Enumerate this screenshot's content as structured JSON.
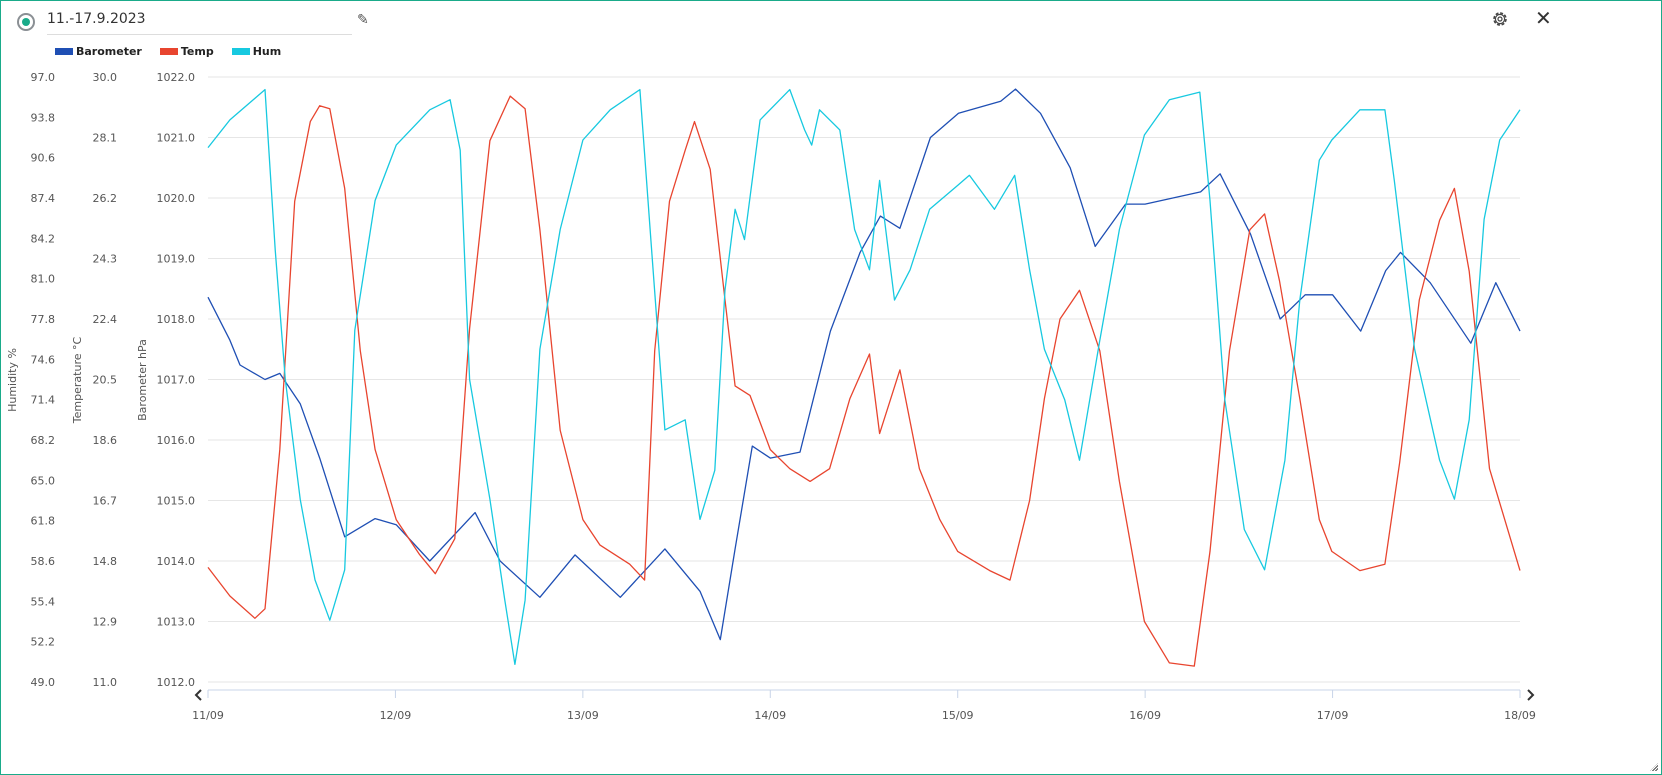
{
  "header": {
    "title": "11.-17.9.2023",
    "edit_icon": "pencil-icon",
    "settings_icon": "gear-icon",
    "close_icon": "close-icon"
  },
  "legend": [
    {
      "label": "Barometer",
      "color": "#1f4fb4"
    },
    {
      "label": "Temp",
      "color": "#e8452f"
    },
    {
      "label": "Hum",
      "color": "#17c9e0"
    }
  ],
  "chart_data": {
    "type": "line",
    "x_unit": "hours since 11/09 00:00",
    "x_ticks": [
      "11/09",
      "12/09",
      "13/09",
      "14/09",
      "15/09",
      "16/09",
      "17/09",
      "18/09"
    ],
    "xlim": [
      0,
      168
    ],
    "grid": true,
    "legend_position": "top-left",
    "axes": [
      {
        "id": "hum",
        "label": "Humidity %",
        "ylim": [
          49,
          97
        ],
        "ticks": [
          "97.0",
          "93.8",
          "90.6",
          "87.4",
          "84.2",
          "81.0",
          "77.8",
          "74.6",
          "71.4",
          "68.2",
          "65.0",
          "61.8",
          "58.6",
          "55.4",
          "52.2",
          "49.0"
        ]
      },
      {
        "id": "temp",
        "label": "Temperature °C",
        "ylim": [
          11,
          30
        ],
        "ticks": [
          "30.0",
          "28.1",
          "26.2",
          "24.3",
          "22.4",
          "20.5",
          "18.6",
          "16.7",
          "14.8",
          "12.9",
          "11.0"
        ]
      },
      {
        "id": "baro",
        "label": "Barometer hPa",
        "ylim": [
          1012,
          1022
        ],
        "ticks": [
          "1022.0",
          "1021.0",
          "1020.0",
          "1019.0",
          "1018.0",
          "1017.0",
          "1016.0",
          "1015.0",
          "1014.0",
          "1013.0",
          "1012.0"
        ]
      }
    ],
    "series": [
      {
        "name": "Barometer",
        "axis": "baro",
        "color": "#1f4fb4",
        "points": [
          [
            0,
            1018.36
          ],
          [
            2.8,
            1017.65
          ],
          [
            4.1,
            1017.24
          ],
          [
            7.3,
            1017.0
          ],
          [
            9.2,
            1017.1
          ],
          [
            11.8,
            1016.6
          ],
          [
            14.3,
            1015.7
          ],
          [
            17.5,
            1014.4
          ],
          [
            21.4,
            1014.7
          ],
          [
            24.1,
            1014.6
          ],
          [
            28.4,
            1014.0
          ],
          [
            34.2,
            1014.8
          ],
          [
            37.4,
            1014.0
          ],
          [
            42.5,
            1013.4
          ],
          [
            47.0,
            1014.1
          ],
          [
            52.8,
            1013.4
          ],
          [
            58.5,
            1014.2
          ],
          [
            63.0,
            1013.5
          ],
          [
            65.6,
            1012.7
          ],
          [
            67.5,
            1014.2
          ],
          [
            69.7,
            1015.9
          ],
          [
            72.0,
            1015.7
          ],
          [
            75.8,
            1015.8
          ],
          [
            79.7,
            1017.8
          ],
          [
            83.5,
            1019.1
          ],
          [
            86.1,
            1019.7
          ],
          [
            88.6,
            1019.5
          ],
          [
            92.5,
            1021.0
          ],
          [
            96.1,
            1021.4
          ],
          [
            101.5,
            1021.6
          ],
          [
            103.4,
            1021.8
          ],
          [
            106.6,
            1021.4
          ],
          [
            110.4,
            1020.5
          ],
          [
            113.6,
            1019.2
          ],
          [
            117.5,
            1019.9
          ],
          [
            120.0,
            1019.9
          ],
          [
            127.1,
            1020.1
          ],
          [
            129.6,
            1020.4
          ],
          [
            133.5,
            1019.4
          ],
          [
            137.3,
            1018.0
          ],
          [
            140.5,
            1018.4
          ],
          [
            144.0,
            1018.4
          ],
          [
            147.6,
            1017.8
          ],
          [
            150.8,
            1018.8
          ],
          [
            152.7,
            1019.1
          ],
          [
            156.5,
            1018.6
          ],
          [
            161.7,
            1017.6
          ],
          [
            164.9,
            1018.6
          ],
          [
            168,
            1017.8
          ]
        ]
      },
      {
        "name": "Temp",
        "axis": "temp",
        "color": "#e8452f",
        "points": [
          [
            0,
            14.6
          ],
          [
            2.8,
            13.7
          ],
          [
            6.0,
            13.0
          ],
          [
            7.3,
            13.3
          ],
          [
            9.2,
            18.3
          ],
          [
            11.1,
            26.1
          ],
          [
            13.1,
            28.6
          ],
          [
            14.3,
            29.1
          ],
          [
            15.6,
            29.0
          ],
          [
            17.5,
            26.5
          ],
          [
            19.5,
            21.4
          ],
          [
            21.4,
            18.3
          ],
          [
            24.1,
            16.1
          ],
          [
            27.1,
            15.0
          ],
          [
            29.1,
            14.4
          ],
          [
            31.6,
            15.5
          ],
          [
            33.5,
            22.1
          ],
          [
            36.1,
            28.0
          ],
          [
            38.7,
            29.4
          ],
          [
            40.6,
            29.0
          ],
          [
            42.5,
            25.2
          ],
          [
            45.1,
            18.9
          ],
          [
            48.0,
            16.1
          ],
          [
            50.2,
            15.3
          ],
          [
            54.0,
            14.7
          ],
          [
            55.9,
            14.2
          ],
          [
            57.2,
            21.4
          ],
          [
            59.1,
            26.1
          ],
          [
            61.1,
            27.7
          ],
          [
            62.3,
            28.6
          ],
          [
            64.3,
            27.1
          ],
          [
            66.2,
            23.0
          ],
          [
            67.5,
            20.3
          ],
          [
            69.4,
            20.0
          ],
          [
            72.0,
            18.3
          ],
          [
            74.5,
            17.7
          ],
          [
            77.1,
            17.3
          ],
          [
            79.6,
            17.7
          ],
          [
            82.2,
            19.9
          ],
          [
            84.7,
            21.3
          ],
          [
            86.0,
            18.8
          ],
          [
            88.6,
            20.8
          ],
          [
            91.1,
            17.7
          ],
          [
            93.7,
            16.1
          ],
          [
            96.0,
            15.1
          ],
          [
            100.1,
            14.5
          ],
          [
            102.7,
            14.2
          ],
          [
            105.2,
            16.7
          ],
          [
            107.1,
            19.9
          ],
          [
            109.1,
            22.4
          ],
          [
            111.6,
            23.3
          ],
          [
            114.2,
            21.4
          ],
          [
            116.7,
            17.3
          ],
          [
            119.9,
            12.9
          ],
          [
            123.1,
            11.6
          ],
          [
            126.3,
            11.5
          ],
          [
            128.3,
            15.1
          ],
          [
            130.8,
            21.4
          ],
          [
            133.4,
            25.2
          ],
          [
            135.3,
            25.7
          ],
          [
            137.2,
            23.6
          ],
          [
            139.8,
            19.9
          ],
          [
            142.3,
            16.1
          ],
          [
            143.9,
            15.1
          ],
          [
            147.5,
            14.5
          ],
          [
            150.7,
            14.7
          ],
          [
            152.6,
            17.9
          ],
          [
            155.1,
            23.0
          ],
          [
            157.7,
            25.5
          ],
          [
            159.6,
            26.5
          ],
          [
            161.5,
            23.9
          ],
          [
            164.1,
            17.7
          ],
          [
            168,
            14.5
          ]
        ]
      },
      {
        "name": "Hum",
        "axis": "hum",
        "color": "#17c9e0",
        "points": [
          [
            0,
            91.4
          ],
          [
            2.8,
            93.6
          ],
          [
            7.3,
            96.0
          ],
          [
            8.6,
            83.3
          ],
          [
            9.9,
            73.0
          ],
          [
            11.8,
            63.5
          ],
          [
            13.7,
            57.1
          ],
          [
            15.6,
            53.9
          ],
          [
            17.5,
            57.9
          ],
          [
            18.8,
            76.9
          ],
          [
            21.4,
            87.2
          ],
          [
            24.1,
            91.6
          ],
          [
            28.4,
            94.4
          ],
          [
            31.0,
            95.2
          ],
          [
            32.3,
            91.2
          ],
          [
            33.5,
            73.0
          ],
          [
            36.1,
            63.5
          ],
          [
            38.0,
            55.5
          ],
          [
            39.3,
            50.4
          ],
          [
            40.6,
            55.5
          ],
          [
            42.5,
            75.4
          ],
          [
            45.1,
            84.9
          ],
          [
            48.0,
            92.0
          ],
          [
            51.5,
            94.4
          ],
          [
            55.3,
            96.0
          ],
          [
            56.8,
            83.3
          ],
          [
            58.5,
            69.0
          ],
          [
            61.1,
            69.8
          ],
          [
            63.0,
            61.9
          ],
          [
            64.9,
            65.8
          ],
          [
            66.2,
            80.1
          ],
          [
            67.5,
            86.5
          ],
          [
            68.7,
            84.1
          ],
          [
            70.7,
            93.6
          ],
          [
            74.5,
            96.0
          ],
          [
            76.4,
            92.8
          ],
          [
            77.3,
            91.6
          ],
          [
            78.3,
            94.4
          ],
          [
            80.9,
            92.8
          ],
          [
            82.8,
            84.9
          ],
          [
            84.7,
            81.7
          ],
          [
            86.0,
            88.8
          ],
          [
            87.9,
            79.3
          ],
          [
            89.9,
            81.7
          ],
          [
            92.4,
            86.5
          ],
          [
            96.0,
            88.4
          ],
          [
            97.5,
            89.2
          ],
          [
            100.7,
            86.5
          ],
          [
            103.3,
            89.2
          ],
          [
            105.2,
            81.7
          ],
          [
            107.1,
            75.4
          ],
          [
            109.7,
            71.4
          ],
          [
            111.6,
            66.6
          ],
          [
            114.2,
            76.1
          ],
          [
            116.7,
            84.9
          ],
          [
            119.9,
            92.4
          ],
          [
            123.1,
            95.2
          ],
          [
            127.0,
            95.8
          ],
          [
            128.3,
            87.2
          ],
          [
            130.2,
            71.4
          ],
          [
            132.7,
            61.1
          ],
          [
            135.3,
            57.9
          ],
          [
            137.9,
            66.6
          ],
          [
            139.8,
            79.3
          ],
          [
            142.3,
            90.4
          ],
          [
            143.9,
            92.0
          ],
          [
            147.5,
            94.4
          ],
          [
            150.7,
            94.4
          ],
          [
            151.9,
            88.8
          ],
          [
            154.5,
            75.4
          ],
          [
            157.7,
            66.6
          ],
          [
            159.6,
            63.5
          ],
          [
            161.5,
            69.8
          ],
          [
            163.4,
            85.7
          ],
          [
            165.4,
            92.0
          ],
          [
            168,
            94.4
          ]
        ]
      }
    ]
  }
}
